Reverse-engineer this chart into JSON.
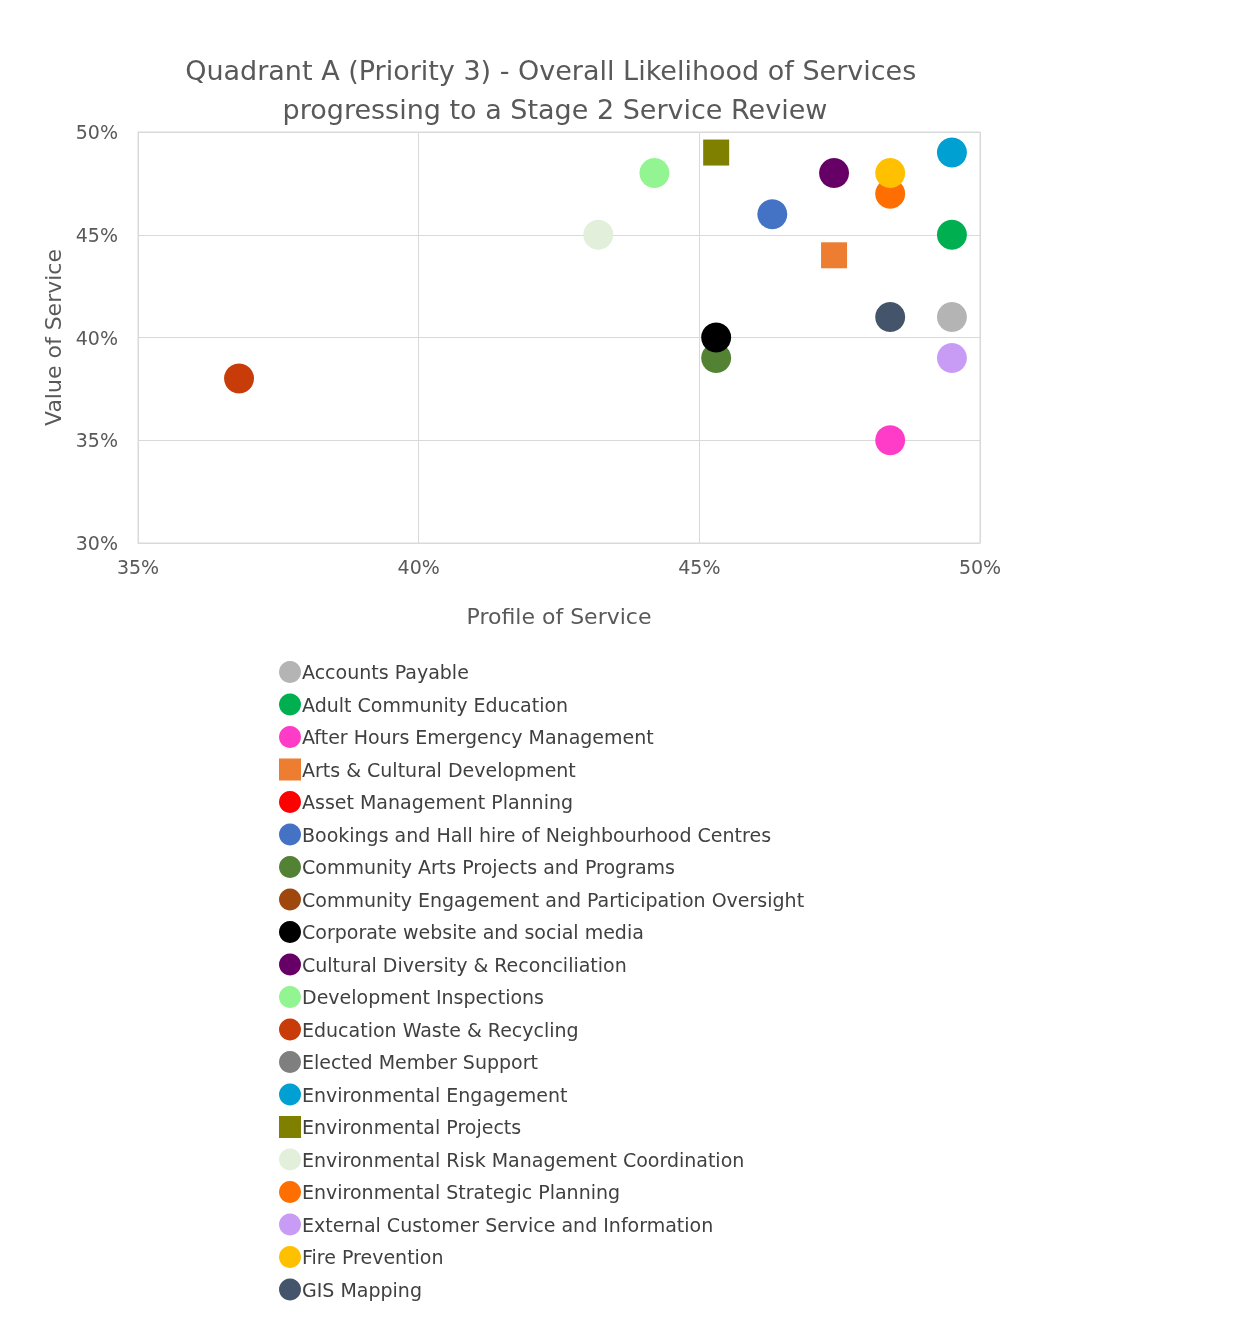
{
  "chart_data": {
    "type": "scatter",
    "title": "Quadrant A (Priority 3) - Overall Likelihood of Services progressing to a Stage 2 Service Review",
    "xlabel": "Profile of Service",
    "ylabel": "Value of Service",
    "xlim": [
      35,
      50
    ],
    "ylim": [
      30,
      50
    ],
    "xticks": [
      {
        "value": 35,
        "label": "35%"
      },
      {
        "value": 40,
        "label": "40%"
      },
      {
        "value": 45,
        "label": "45%"
      },
      {
        "value": 50,
        "label": "50%"
      }
    ],
    "yticks": [
      {
        "value": 30,
        "label": "30%"
      },
      {
        "value": 35,
        "label": "35%"
      },
      {
        "value": 40,
        "label": "40%"
      },
      {
        "value": 45,
        "label": "45%"
      },
      {
        "value": 50,
        "label": "50%"
      }
    ],
    "grid": true,
    "legend": "bottom",
    "marker": "circle",
    "series": [
      {
        "name": "Accounts Payable",
        "color": "#b4b4b4",
        "x": [
          49.5
        ],
        "values": [
          41
        ]
      },
      {
        "name": "Adult Community Education",
        "color": "#00b050",
        "x": [
          49.5
        ],
        "values": [
          45
        ]
      },
      {
        "name": "After Hours Emergency Management",
        "color": "#ff3cc8",
        "x": [
          48.4
        ],
        "values": [
          35
        ]
      },
      {
        "name": "Arts & Cultural Development",
        "color": "#ed7d31",
        "marker": "square",
        "x": [
          47.4
        ],
        "values": [
          44
        ]
      },
      {
        "name": "Asset Management Planning",
        "color": "#ff0000",
        "x": [
          null
        ],
        "values": [
          null
        ]
      },
      {
        "name": "Bookings and Hall hire of Neighbourhood Centres",
        "color": "#4472c4",
        "x": [
          46.3
        ],
        "values": [
          46
        ]
      },
      {
        "name": "Community Arts Projects and Programs",
        "color": "#548235",
        "x": [
          45.3
        ],
        "values": [
          39
        ]
      },
      {
        "name": "Community Engagement and Participation Oversight",
        "color": "#9e480e",
        "x": [
          null
        ],
        "values": [
          null
        ]
      },
      {
        "name": "Corporate website and social media",
        "color": "#000000",
        "x": [
          45.3
        ],
        "values": [
          40
        ]
      },
      {
        "name": "Cultural Diversity & Reconciliation",
        "color": "#660066",
        "x": [
          47.4
        ],
        "values": [
          48
        ]
      },
      {
        "name": "Development Inspections",
        "color": "#92f592",
        "x": [
          44.2
        ],
        "values": [
          48
        ]
      },
      {
        "name": "Education Waste & Recycling",
        "color": "#c83c0a",
        "x": [
          36.8
        ],
        "values": [
          38
        ]
      },
      {
        "name": "Elected Member Support",
        "color": "#7f7f7f",
        "x": [
          null
        ],
        "values": [
          null
        ]
      },
      {
        "name": "Environmental Engagement",
        "color": "#00a0d2",
        "x": [
          49.5
        ],
        "values": [
          49
        ]
      },
      {
        "name": "Environmental Projects",
        "color": "#808000",
        "marker": "square",
        "x": [
          45.3
        ],
        "values": [
          49
        ]
      },
      {
        "name": "Environmental Risk Management Coordination",
        "color": "#e2efda",
        "x": [
          43.2
        ],
        "values": [
          45
        ]
      },
      {
        "name": "Environmental Strategic Planning",
        "color": "#ff6e00",
        "x": [
          48.4
        ],
        "values": [
          47
        ]
      },
      {
        "name": "External Customer Service and Information",
        "color": "#c89bf5",
        "x": [
          49.5
        ],
        "values": [
          39
        ]
      },
      {
        "name": "Fire Prevention",
        "color": "#ffc000",
        "x": [
          48.4
        ],
        "values": [
          48
        ]
      },
      {
        "name": "GIS Mapping",
        "color": "#44546a",
        "x": [
          48.4
        ],
        "values": [
          41
        ]
      }
    ]
  }
}
